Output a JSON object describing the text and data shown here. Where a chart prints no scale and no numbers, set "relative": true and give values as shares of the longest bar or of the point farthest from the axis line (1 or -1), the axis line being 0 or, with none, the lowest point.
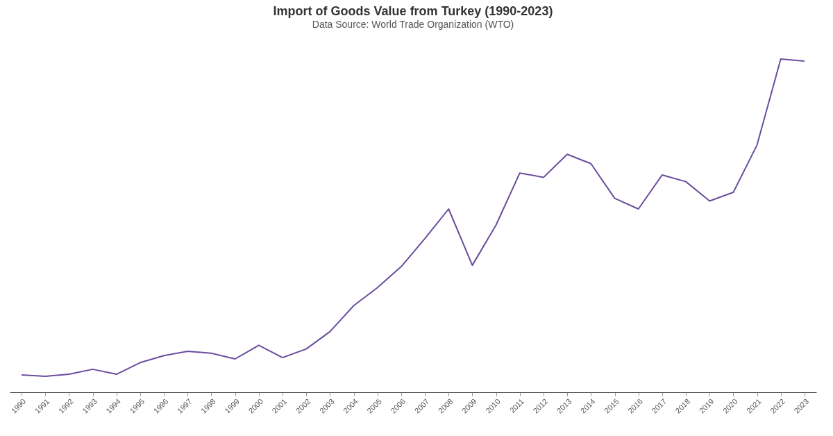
{
  "chart_data": {
    "type": "line",
    "title": "Import of Goods Value from Turkey (1990-2023)",
    "subtitle": "Data Source: World Trade Organization (WTO)",
    "relative": true,
    "categories": [
      "1990",
      "1991",
      "1992",
      "1993",
      "1994",
      "1995",
      "1996",
      "1997",
      "1998",
      "1999",
      "2000",
      "2001",
      "2002",
      "2003",
      "2004",
      "2005",
      "2006",
      "2007",
      "2008",
      "2009",
      "2010",
      "2011",
      "2012",
      "2013",
      "2014",
      "2015",
      "2016",
      "2017",
      "2018",
      "2019",
      "2020",
      "2021",
      "2022",
      "2023"
    ],
    "series": [
      {
        "color": "#6a4c9c",
        "values": [
          0.052,
          0.048,
          0.054,
          0.069,
          0.054,
          0.089,
          0.11,
          0.123,
          0.117,
          0.1,
          0.141,
          0.104,
          0.13,
          0.182,
          0.26,
          0.314,
          0.377,
          0.461,
          0.55,
          0.381,
          0.502,
          0.658,
          0.645,
          0.714,
          0.686,
          0.582,
          0.55,
          0.652,
          0.632,
          0.574,
          0.6,
          0.742,
          1,
          0.994
        ]
      }
    ],
    "grid": false,
    "marker": "none",
    "line_style": "solid"
  }
}
